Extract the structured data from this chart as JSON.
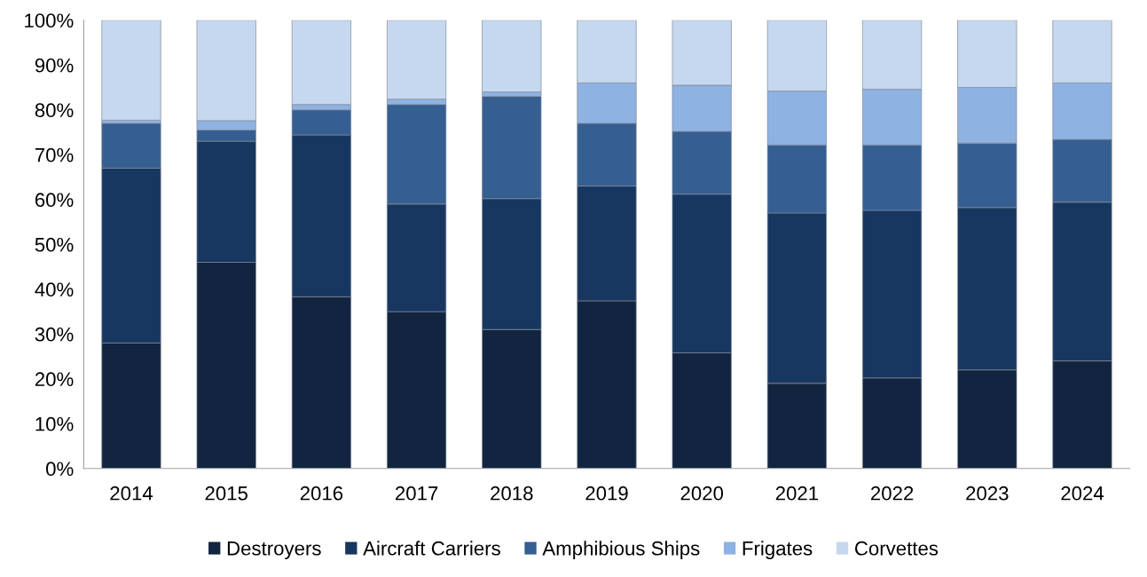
{
  "chart_data": {
    "type": "bar",
    "stacked": true,
    "categories": [
      "2014",
      "2015",
      "2016",
      "2017",
      "2018",
      "2019",
      "2020",
      "2021",
      "2022",
      "2023",
      "2024"
    ],
    "series": [
      {
        "name": "Destroyers",
        "color": "#12243f",
        "values": [
          28,
          46,
          38.3,
          35,
          31,
          37.4,
          25.8,
          19,
          20.2,
          22,
          24
        ]
      },
      {
        "name": "Aircraft Carriers",
        "color": "#183760",
        "values": [
          39,
          27,
          36.1,
          24,
          29.2,
          25.6,
          35.4,
          38,
          37.4,
          36.2,
          35.4
        ]
      },
      {
        "name": "Amphibious Ships",
        "color": "#355f91",
        "values": [
          10,
          2.5,
          5.6,
          22.2,
          22.8,
          14,
          14,
          15.2,
          14.6,
          14.4,
          14
        ]
      },
      {
        "name": "Frigates",
        "color": "#8eb2e1",
        "values": [
          0.7,
          2.1,
          1.2,
          1.2,
          1,
          9,
          10.3,
          12,
          12.4,
          12.4,
          12.6
        ]
      },
      {
        "name": "Corvettes",
        "color": "#c6d8ef",
        "values": [
          22.3,
          22.4,
          18.8,
          17.6,
          16,
          14,
          14.5,
          15.8,
          15.4,
          15,
          14
        ]
      }
    ],
    "ylim": [
      0,
      100
    ],
    "yticks": [
      {
        "value": 0,
        "label": "0%"
      },
      {
        "value": 10,
        "label": "10%"
      },
      {
        "value": 20,
        "label": "20%"
      },
      {
        "value": 30,
        "label": "30%"
      },
      {
        "value": 40,
        "label": "40%"
      },
      {
        "value": 50,
        "label": "50%"
      },
      {
        "value": 60,
        "label": "60%"
      },
      {
        "value": 70,
        "label": "70%"
      },
      {
        "value": 80,
        "label": "80%"
      },
      {
        "value": 90,
        "label": "90%"
      },
      {
        "value": 100,
        "label": "100%"
      }
    ],
    "grid": false,
    "legend": "bottom"
  }
}
